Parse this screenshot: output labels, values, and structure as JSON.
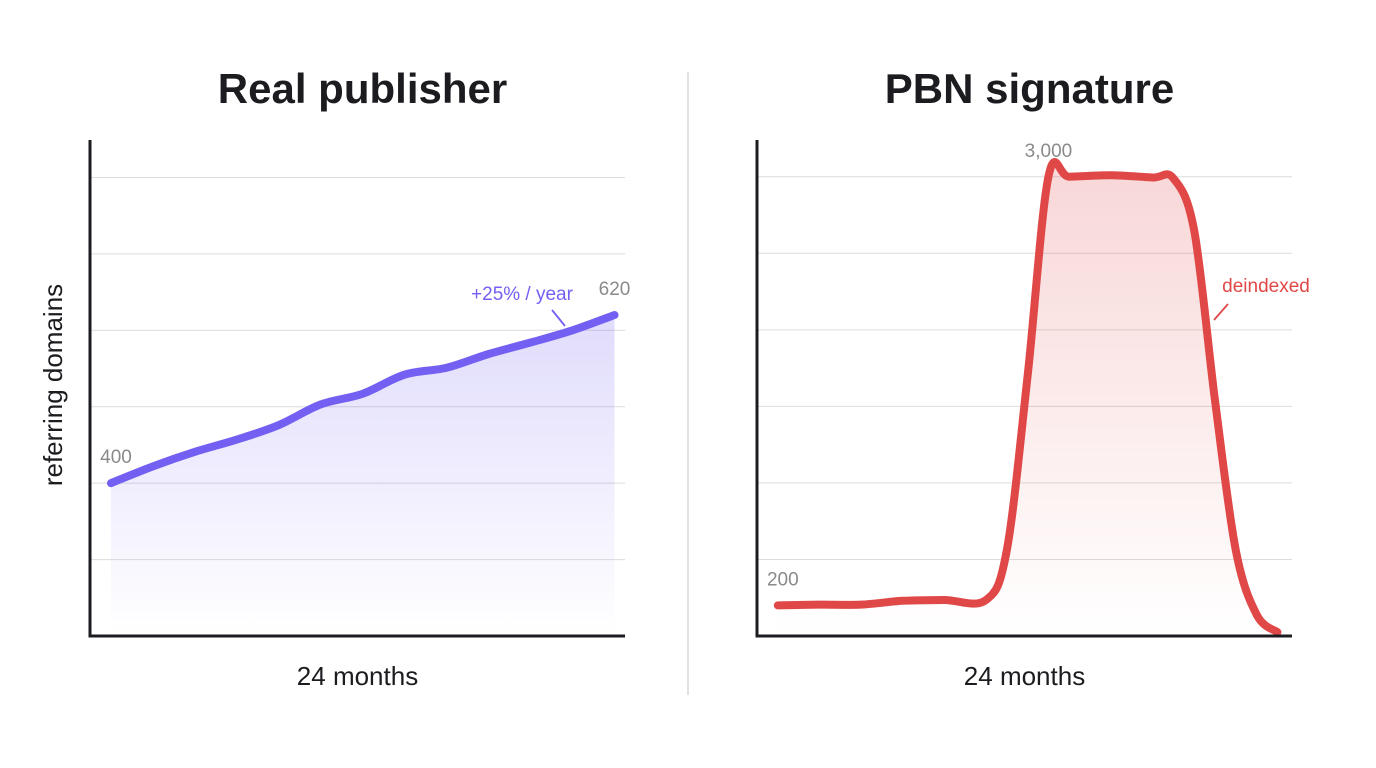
{
  "chart_data": [
    {
      "type": "line",
      "title": "Real publisher",
      "xlabel": "24 months",
      "ylabel": "referring domains",
      "x": [
        0,
        2,
        4,
        6,
        8,
        10,
        12,
        14,
        16,
        18,
        20,
        22,
        24
      ],
      "values": [
        400,
        422,
        441,
        457,
        476,
        503,
        517,
        542,
        551,
        569,
        584,
        600,
        620
      ],
      "color": "#7360f2",
      "annotation": "+25% / year",
      "xlim": [
        -1,
        24.5
      ],
      "ylim": [
        200,
        849
      ],
      "yticks": [
        300,
        400,
        500,
        600,
        700,
        800
      ],
      "grid": true
    },
    {
      "type": "line",
      "title": "PBN signature",
      "xlabel": "24 months",
      "x": [
        0,
        2,
        4,
        6,
        8,
        10,
        11,
        12,
        13,
        14,
        16,
        18,
        19,
        20,
        21,
        22,
        23,
        24
      ],
      "values": [
        200,
        205,
        205,
        230,
        235,
        235,
        560,
        1700,
        3000,
        3000,
        3010,
        2995,
        2990,
        2650,
        1540,
        560,
        140,
        25
      ],
      "value_labels": [
        "200",
        null,
        null,
        null,
        null,
        null,
        null,
        null,
        "3,000",
        null,
        null,
        null,
        null,
        null,
        null,
        null,
        null,
        null
      ],
      "color": "#e04848",
      "annotation": "deindexed",
      "xlim": [
        -1,
        24.7
      ],
      "ylim": [
        0,
        3240
      ],
      "yticks": [
        500,
        1000,
        1500,
        2000,
        2500,
        3000
      ],
      "grid": true
    }
  ]
}
